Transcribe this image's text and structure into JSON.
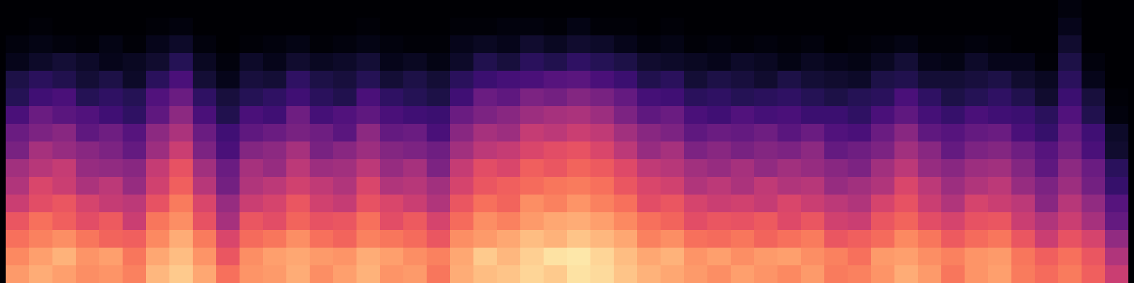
{
  "chart_data": {
    "type": "heatmap",
    "color": "magma",
    "zlim": [
      -80,
      0
    ],
    "tick_labels": false,
    "values": [
      [
        -17,
        -20,
        -24,
        -29,
        -36,
        -41,
        -44,
        -52,
        -55,
        -61,
        -68,
        -70,
        -76,
        -78,
        -80,
        -80
      ],
      [
        -14,
        -16,
        -21,
        -24,
        -31,
        -33,
        -40,
        -43,
        -51,
        -55,
        -63,
        -67,
        -74,
        -77,
        -79,
        -80
      ],
      [
        -16,
        -13,
        -19,
        -27,
        -29,
        -36,
        -37,
        -46,
        -49,
        -58,
        -61,
        -69,
        -72,
        -78,
        -80,
        -80
      ],
      [
        -19,
        -18,
        -23,
        -31,
        -34,
        -42,
        -46,
        -49,
        -57,
        -60,
        -68,
        -72,
        -74,
        -79,
        -80,
        -80
      ],
      [
        -18,
        -16,
        -26,
        -28,
        -37,
        -39,
        -47,
        -51,
        -54,
        -63,
        -66,
        -70,
        -76,
        -77,
        -80,
        -80
      ],
      [
        -21,
        -23,
        -27,
        -36,
        -39,
        -46,
        -49,
        -56,
        -59,
        -66,
        -68,
        -74,
        -75,
        -79,
        -80,
        -80
      ],
      [
        -12,
        -15,
        -20,
        -23,
        -30,
        -35,
        -37,
        -45,
        -48,
        -57,
        -60,
        -67,
        -73,
        -76,
        -79,
        -80
      ],
      [
        -9,
        -11,
        -14,
        -19,
        -22,
        -27,
        -30,
        -36,
        -42,
        -48,
        -55,
        -61,
        -68,
        -74,
        -78,
        -80
      ],
      [
        -15,
        -18,
        -22,
        -30,
        -33,
        -40,
        -44,
        -51,
        -55,
        -61,
        -66,
        -72,
        -75,
        -78,
        -80,
        -80
      ],
      [
        -24,
        -29,
        -33,
        -43,
        -46,
        -53,
        -55,
        -61,
        -63,
        -69,
        -71,
        -76,
        -78,
        -80,
        -80,
        -80
      ],
      [
        -18,
        -19,
        -25,
        -29,
        -36,
        -41,
        -43,
        -50,
        -57,
        -61,
        -68,
        -71,
        -74,
        -79,
        -80,
        -80
      ],
      [
        -17,
        -16,
        -23,
        -31,
        -34,
        -39,
        -46,
        -48,
        -55,
        -63,
        -66,
        -72,
        -76,
        -78,
        -80,
        -80
      ],
      [
        -14,
        -15,
        -19,
        -26,
        -29,
        -35,
        -39,
        -43,
        -52,
        -54,
        -63,
        -66,
        -73,
        -77,
        -80,
        -80
      ],
      [
        -19,
        -17,
        -24,
        -30,
        -35,
        -38,
        -45,
        -52,
        -54,
        -62,
        -67,
        -70,
        -75,
        -79,
        -80,
        -80
      ],
      [
        -16,
        -18,
        -26,
        -29,
        -37,
        -41,
        -44,
        -49,
        -58,
        -60,
        -69,
        -71,
        -74,
        -78,
        -80,
        -80
      ],
      [
        -13,
        -14,
        -21,
        -24,
        -30,
        -33,
        -39,
        -45,
        -48,
        -57,
        -61,
        -68,
        -72,
        -77,
        -79,
        -80
      ],
      [
        -18,
        -16,
        -23,
        -31,
        -33,
        -41,
        -46,
        -50,
        -56,
        -61,
        -66,
        -72,
        -76,
        -78,
        -80,
        -80
      ],
      [
        -17,
        -19,
        -25,
        -28,
        -36,
        -40,
        -43,
        -51,
        -55,
        -63,
        -68,
        -70,
        -75,
        -79,
        -80,
        -80
      ],
      [
        -23,
        -21,
        -29,
        -34,
        -41,
        -44,
        -51,
        -54,
        -61,
        -64,
        -70,
        -72,
        -77,
        -79,
        -80,
        -80
      ],
      [
        -14,
        -15,
        -19,
        -25,
        -29,
        -34,
        -37,
        -44,
        -49,
        -55,
        -63,
        -67,
        -74,
        -76,
        -79,
        -80
      ],
      [
        -11,
        -9,
        -17,
        -19,
        -24,
        -29,
        -31,
        -39,
        -43,
        -51,
        -55,
        -64,
        -69,
        -75,
        -79,
        -80
      ],
      [
        -10,
        -12,
        -15,
        -21,
        -26,
        -27,
        -33,
        -37,
        -45,
        -49,
        -57,
        -62,
        -71,
        -76,
        -78,
        -80
      ],
      [
        -7,
        -8,
        -11,
        -17,
        -19,
        -25,
        -27,
        -33,
        -37,
        -45,
        -51,
        -61,
        -67,
        -73,
        -78,
        -80
      ],
      [
        -9,
        -5,
        -13,
        -15,
        -21,
        -23,
        -29,
        -31,
        -39,
        -43,
        -53,
        -59,
        -69,
        -75,
        -79,
        -80
      ],
      [
        -5,
        -4,
        -10,
        -14,
        -18,
        -22,
        -26,
        -30,
        -36,
        -42,
        -50,
        -58,
        -66,
        -73,
        -77,
        -80
      ],
      [
        -6,
        -7,
        -12,
        -16,
        -21,
        -24,
        -28,
        -33,
        -38,
        -45,
        -52,
        -61,
        -68,
        -74,
        -79,
        -80
      ],
      [
        -10,
        -11,
        -15,
        -20,
        -24,
        -29,
        -32,
        -39,
        -44,
        -51,
        -56,
        -64,
        -70,
        -76,
        -79,
        -80
      ],
      [
        -13,
        -15,
        -21,
        -24,
        -31,
        -33,
        -38,
        -46,
        -49,
        -57,
        -62,
        -69,
        -73,
        -78,
        -80,
        -80
      ],
      [
        -15,
        -13,
        -19,
        -26,
        -29,
        -35,
        -40,
        -43,
        -51,
        -55,
        -63,
        -67,
        -74,
        -77,
        -79,
        -80
      ],
      [
        -17,
        -18,
        -24,
        -31,
        -34,
        -41,
        -44,
        -51,
        -57,
        -61,
        -67,
        -72,
        -75,
        -79,
        -80,
        -80
      ],
      [
        -19,
        -16,
        -25,
        -29,
        -36,
        -39,
        -46,
        -49,
        -55,
        -63,
        -66,
        -70,
        -76,
        -78,
        -80,
        -80
      ],
      [
        -16,
        -19,
        -23,
        -30,
        -35,
        -42,
        -43,
        -52,
        -56,
        -60,
        -68,
        -71,
        -74,
        -79,
        -80,
        -80
      ],
      [
        -18,
        -17,
        -26,
        -28,
        -37,
        -38,
        -47,
        -50,
        -54,
        -62,
        -67,
        -73,
        -75,
        -78,
        -80,
        -80
      ],
      [
        -20,
        -16,
        -24,
        -32,
        -33,
        -41,
        -44,
        -51,
        -58,
        -61,
        -66,
        -70,
        -77,
        -79,
        -80,
        -80
      ],
      [
        -17,
        -19,
        -22,
        -29,
        -36,
        -40,
        -46,
        -48,
        -55,
        -64,
        -68,
        -72,
        -75,
        -78,
        -80,
        -80
      ],
      [
        -22,
        -21,
        -29,
        -35,
        -39,
        -46,
        -49,
        -56,
        -60,
        -64,
        -70,
        -73,
        -76,
        -80,
        -80,
        -80
      ],
      [
        -21,
        -24,
        -27,
        -36,
        -41,
        -44,
        -51,
        -54,
        -61,
        -66,
        -68,
        -74,
        -77,
        -79,
        -80,
        -80
      ],
      [
        -18,
        -17,
        -25,
        -29,
        -34,
        -41,
        -44,
        -51,
        -55,
        -61,
        -67,
        -70,
        -75,
        -78,
        -80,
        -80
      ],
      [
        -14,
        -16,
        -20,
        -26,
        -30,
        -33,
        -39,
        -44,
        -49,
        -57,
        -61,
        -69,
        -72,
        -77,
        -80,
        -80
      ],
      [
        -17,
        -19,
        -23,
        -31,
        -36,
        -39,
        -46,
        -49,
        -57,
        -62,
        -66,
        -72,
        -76,
        -79,
        -80,
        -80
      ],
      [
        -23,
        -21,
        -28,
        -34,
        -41,
        -45,
        -49,
        -56,
        -59,
        -65,
        -70,
        -72,
        -77,
        -79,
        -80,
        -80
      ],
      [
        -18,
        -18,
        -25,
        -30,
        -34,
        -41,
        -45,
        -51,
        -56,
        -61,
        -68,
        -71,
        -74,
        -78,
        -80,
        -80
      ],
      [
        -16,
        -17,
        -23,
        -29,
        -36,
        -39,
        -44,
        -50,
        -55,
        -63,
        -66,
        -70,
        -76,
        -79,
        -80,
        -80
      ],
      [
        -22,
        -23,
        -29,
        -36,
        -39,
        -46,
        -50,
        -54,
        -61,
        -64,
        -69,
        -73,
        -76,
        -80,
        -80,
        -80
      ],
      [
        -25,
        -27,
        -36,
        -41,
        -49,
        -51,
        -57,
        -59,
        -65,
        -67,
        -73,
        -75,
        -79,
        -80,
        -80,
        -80
      ],
      [
        -22,
        -24,
        -30,
        -36,
        -40,
        -45,
        -48,
        -53,
        -56,
        -60,
        -64,
        -67,
        -70,
        -73,
        -76,
        -78
      ],
      [
        -27,
        -29,
        -34,
        -43,
        -47,
        -53,
        -55,
        -61,
        -63,
        -69,
        -71,
        -76,
        -78,
        -80,
        -80,
        -80
      ],
      [
        -36,
        -41,
        -47,
        -56,
        -59,
        -65,
        -67,
        -73,
        -74,
        -78,
        -79,
        -80,
        -80,
        -80,
        -80,
        -80
      ]
    ]
  }
}
